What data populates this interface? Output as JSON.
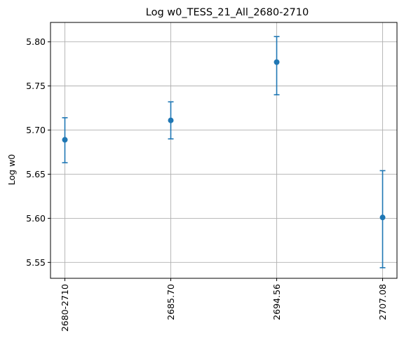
{
  "chart_data": {
    "type": "scatter",
    "title": "Log w0_TESS_21_All_2680-2710",
    "xlabel": "",
    "ylabel": "Log w0",
    "categories": [
      "2680-2710",
      "2685.70",
      "2694.56",
      "2707.08"
    ],
    "series": [
      {
        "values": [
          5.689,
          5.711,
          5.777,
          5.601
        ],
        "err_low": [
          5.663,
          5.69,
          5.74,
          5.544
        ],
        "err_high": [
          5.714,
          5.732,
          5.806,
          5.654
        ]
      }
    ],
    "ylim": [
      5.532,
      5.822
    ],
    "yticks": [
      "5.55",
      "5.60",
      "5.65",
      "5.70",
      "5.75",
      "5.80"
    ],
    "grid": true,
    "colors": {
      "marker": "#1f77b4",
      "grid": "#b0b0b0"
    }
  }
}
